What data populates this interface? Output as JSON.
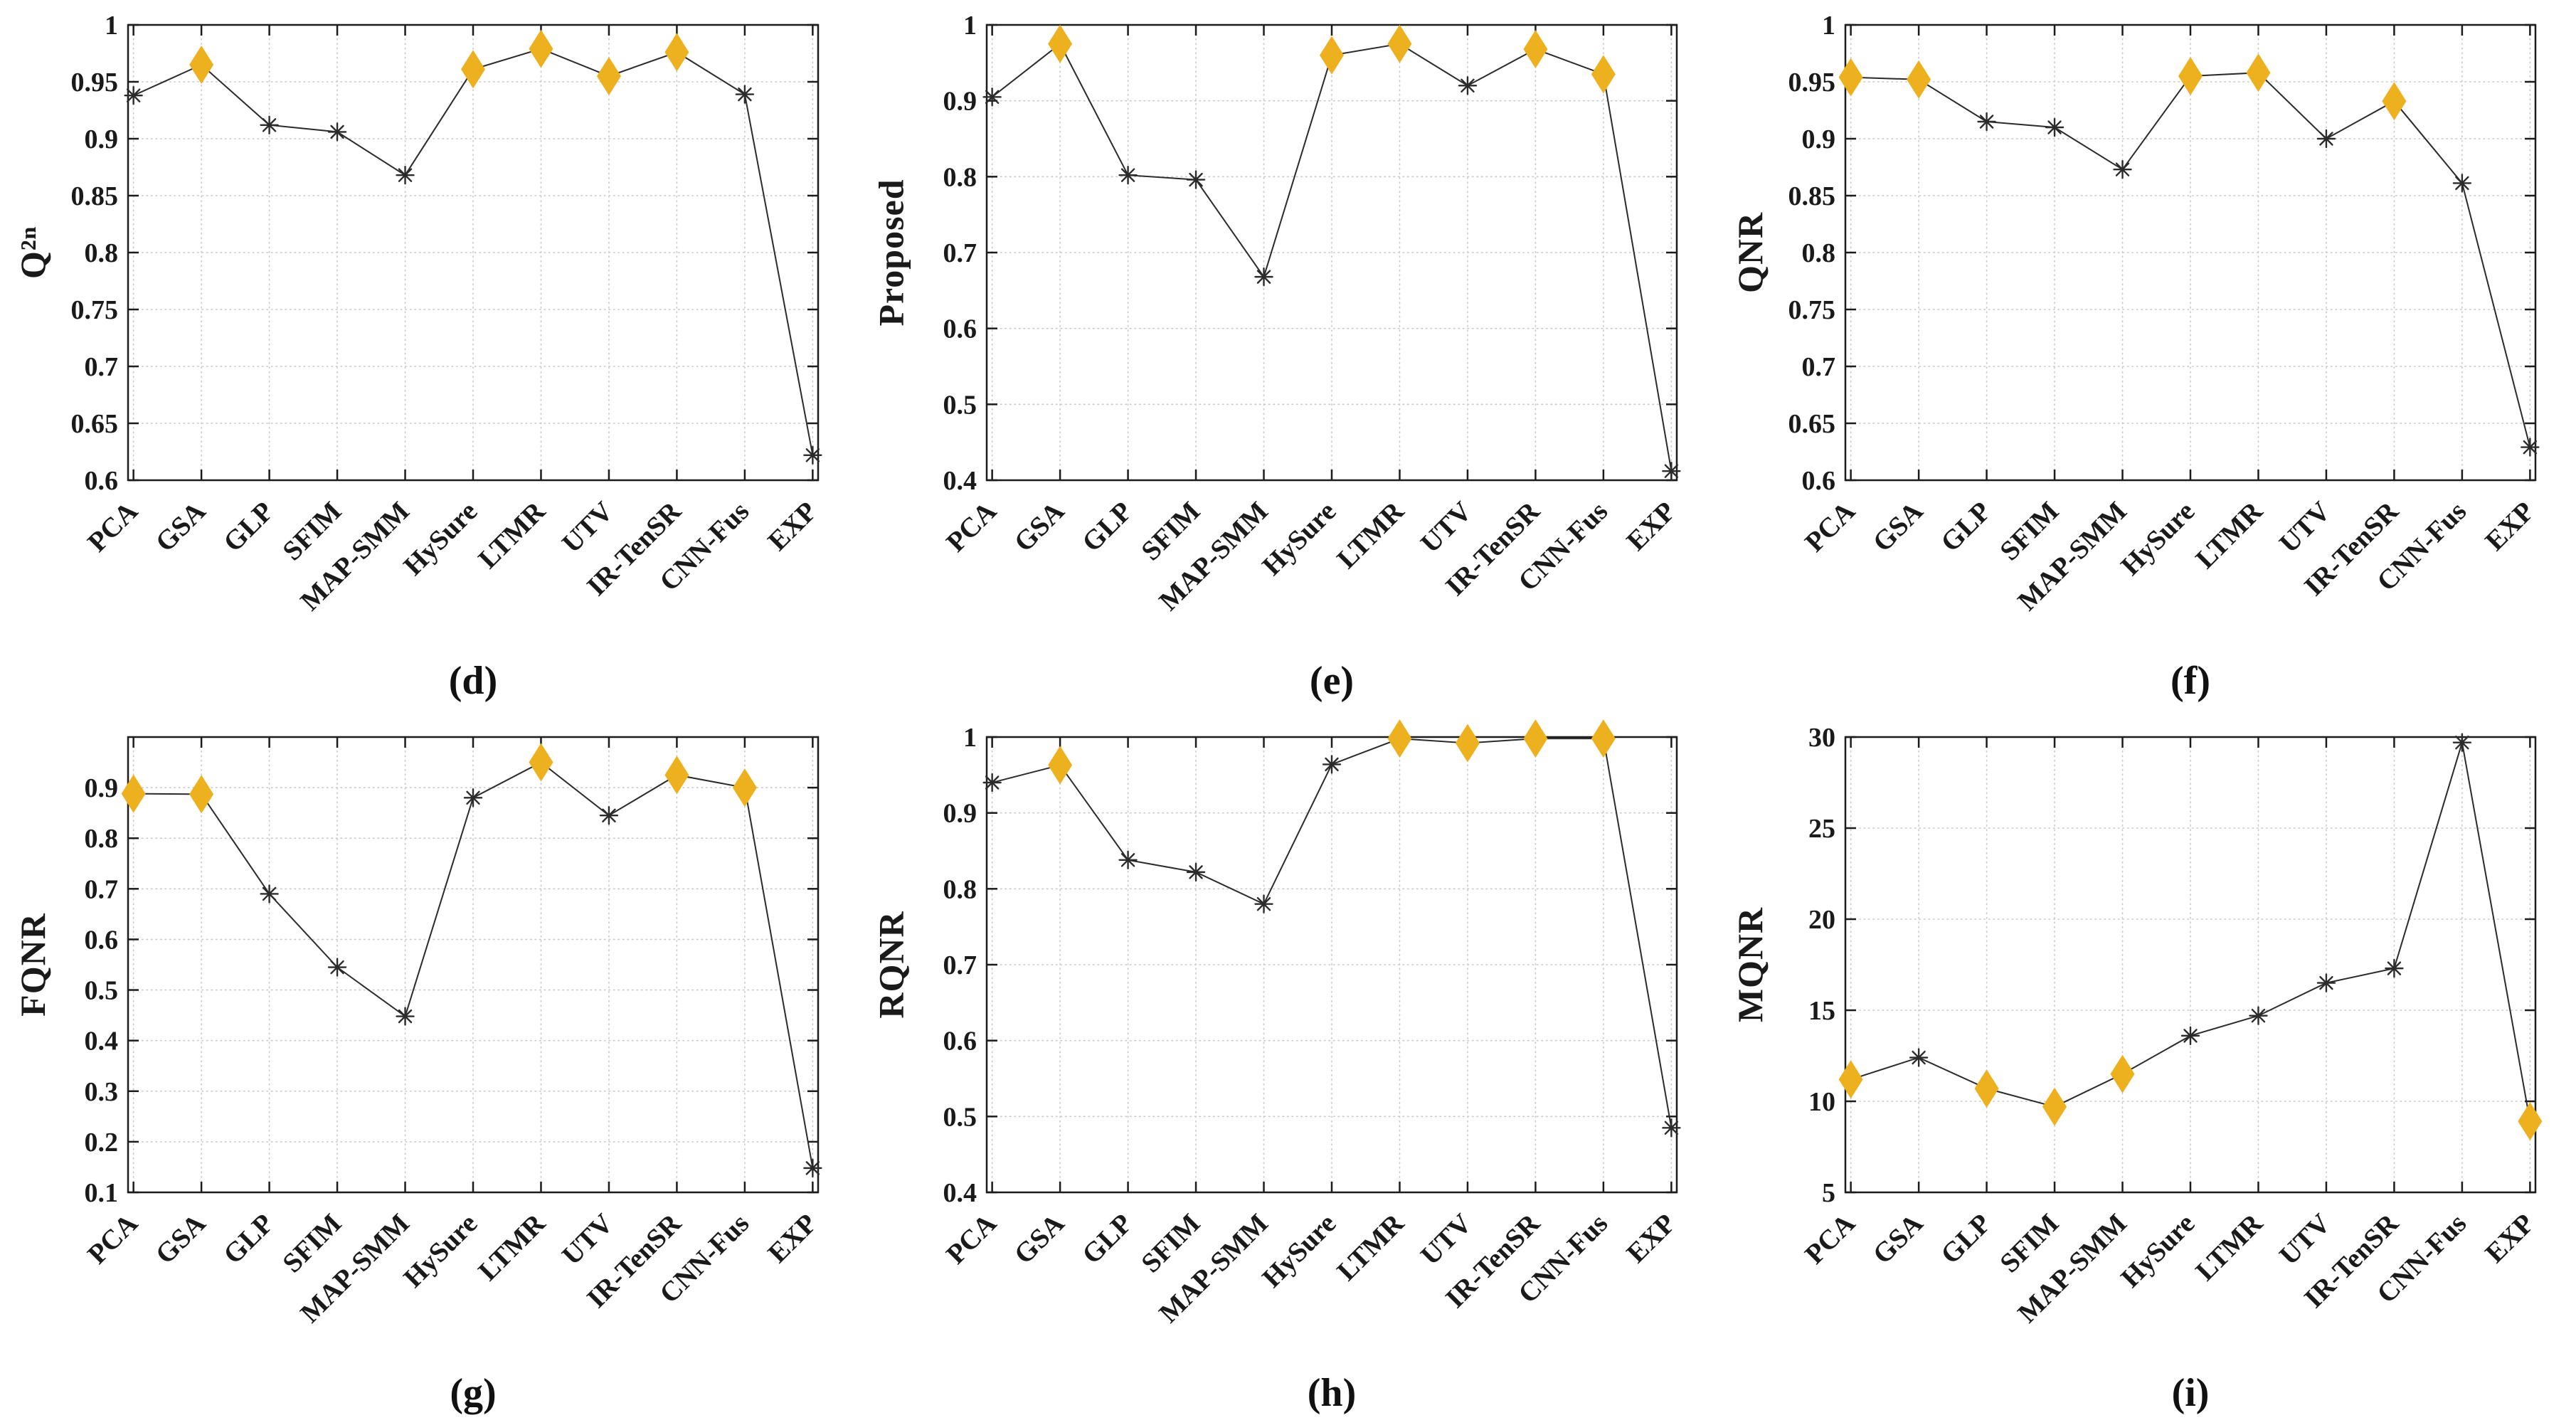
{
  "figure": {
    "background": "#ffffff",
    "rows": 2,
    "cols": 3,
    "style": {
      "line_color": "#2b2b2b",
      "axis_color": "#1c1c1c",
      "grid_color": "#c9c9c9",
      "tick_label_color": "#1a1a1a",
      "diamond_marker_color": "#EDB120",
      "asterisk_marker_color": "#2b2b2b"
    }
  },
  "chart_data": [
    {
      "type": "line",
      "panel": "d",
      "caption": "(d)",
      "ylabel": "Q²ⁿ",
      "xlabel": "",
      "grid": true,
      "legend": null,
      "ylim": [
        0.6,
        1.0
      ],
      "yticks": [
        "0.6",
        "0.65",
        "0.7",
        "0.75",
        "0.8",
        "0.85",
        "0.9",
        "0.95",
        "1"
      ],
      "categories": [
        "PCA",
        "GSA",
        "GLP",
        "SFIM",
        "MAP-SMM",
        "HySure",
        "LTMR",
        "UTV",
        "IR-TenSR",
        "CNN-Fus",
        "EXP"
      ],
      "values": [
        0.938,
        0.965,
        0.912,
        0.906,
        0.868,
        0.961,
        0.979,
        0.955,
        0.976,
        0.939,
        0.622
      ],
      "marker_types": [
        "asterisk",
        "diamond",
        "asterisk",
        "asterisk",
        "asterisk",
        "diamond",
        "diamond",
        "diamond",
        "diamond",
        "asterisk",
        "asterisk"
      ]
    },
    {
      "type": "line",
      "panel": "e",
      "caption": "(e)",
      "ylabel": "Proposed",
      "xlabel": "",
      "grid": true,
      "legend": null,
      "ylim": [
        0.4,
        1.0
      ],
      "yticks": [
        "0.4",
        "0.5",
        "0.6",
        "0.7",
        "0.8",
        "0.9",
        "1"
      ],
      "categories": [
        "PCA",
        "GSA",
        "GLP",
        "SFIM",
        "MAP-SMM",
        "HySure",
        "LTMR",
        "UTV",
        "IR-TenSR",
        "CNN-Fus",
        "EXP"
      ],
      "values": [
        0.905,
        0.975,
        0.802,
        0.796,
        0.668,
        0.96,
        0.975,
        0.92,
        0.968,
        0.935,
        0.412
      ],
      "marker_types": [
        "asterisk",
        "diamond",
        "asterisk",
        "asterisk",
        "asterisk",
        "diamond",
        "diamond",
        "asterisk",
        "diamond",
        "diamond",
        "asterisk"
      ]
    },
    {
      "type": "line",
      "panel": "f",
      "caption": "(f)",
      "ylabel": "QNR",
      "xlabel": "",
      "grid": true,
      "legend": null,
      "ylim": [
        0.6,
        1.0
      ],
      "yticks": [
        "0.6",
        "0.65",
        "0.7",
        "0.75",
        "0.8",
        "0.85",
        "0.9",
        "0.95",
        "1"
      ],
      "categories": [
        "PCA",
        "GSA",
        "GLP",
        "SFIM",
        "MAP-SMM",
        "HySure",
        "LTMR",
        "UTV",
        "IR-TenSR",
        "CNN-Fus",
        "EXP"
      ],
      "values": [
        0.954,
        0.952,
        0.915,
        0.91,
        0.873,
        0.955,
        0.958,
        0.9,
        0.933,
        0.861,
        0.629
      ],
      "marker_types": [
        "diamond",
        "diamond",
        "asterisk",
        "asterisk",
        "asterisk",
        "diamond",
        "diamond",
        "asterisk",
        "diamond",
        "asterisk",
        "asterisk"
      ]
    },
    {
      "type": "line",
      "panel": "g",
      "caption": "(g)",
      "ylabel": "FQNR",
      "xlabel": "",
      "grid": true,
      "legend": null,
      "ylim": [
        0.1,
        1.0
      ],
      "yticks": [
        "0.1",
        "0.2",
        "0.3",
        "0.4",
        "0.5",
        "0.6",
        "0.7",
        "0.8",
        "0.9"
      ],
      "categories": [
        "PCA",
        "GSA",
        "GLP",
        "SFIM",
        "MAP-SMM",
        "HySure",
        "LTMR",
        "UTV",
        "IR-TenSR",
        "CNN-Fus",
        "EXP"
      ],
      "values": [
        0.888,
        0.887,
        0.69,
        0.545,
        0.448,
        0.88,
        0.95,
        0.845,
        0.925,
        0.9,
        0.148
      ],
      "marker_types": [
        "diamond",
        "diamond",
        "asterisk",
        "asterisk",
        "asterisk",
        "asterisk",
        "diamond",
        "asterisk",
        "diamond",
        "diamond",
        "asterisk"
      ]
    },
    {
      "type": "line",
      "panel": "h",
      "caption": "(h)",
      "ylabel": "RQNR",
      "xlabel": "",
      "grid": true,
      "legend": null,
      "ylim": [
        0.4,
        1.0
      ],
      "yticks": [
        "0.4",
        "0.5",
        "0.6",
        "0.7",
        "0.8",
        "0.9",
        "1"
      ],
      "categories": [
        "PCA",
        "GSA",
        "GLP",
        "SFIM",
        "MAP-SMM",
        "HySure",
        "LTMR",
        "UTV",
        "IR-TenSR",
        "CNN-Fus",
        "EXP"
      ],
      "values": [
        0.94,
        0.963,
        0.838,
        0.822,
        0.78,
        0.964,
        0.998,
        0.992,
        0.998,
        0.998,
        0.485
      ],
      "marker_types": [
        "asterisk",
        "diamond",
        "asterisk",
        "asterisk",
        "asterisk",
        "asterisk",
        "diamond",
        "diamond",
        "diamond",
        "diamond",
        "asterisk"
      ]
    },
    {
      "type": "line",
      "panel": "i",
      "caption": "(i)",
      "ylabel": "MQNR",
      "xlabel": "",
      "grid": true,
      "legend": null,
      "ylim": [
        5,
        30
      ],
      "yticks": [
        "5",
        "10",
        "15",
        "20",
        "25",
        "30"
      ],
      "categories": [
        "PCA",
        "GSA",
        "GLP",
        "SFIM",
        "MAP-SMM",
        "HySure",
        "LTMR",
        "UTV",
        "IR-TenSR",
        "CNN-Fus",
        "EXP"
      ],
      "values": [
        11.2,
        12.4,
        10.7,
        9.7,
        11.5,
        13.6,
        14.7,
        16.5,
        17.3,
        29.7,
        8.9
      ],
      "marker_types": [
        "diamond",
        "asterisk",
        "diamond",
        "diamond",
        "diamond",
        "asterisk",
        "asterisk",
        "asterisk",
        "asterisk",
        "asterisk",
        "diamond"
      ]
    }
  ]
}
